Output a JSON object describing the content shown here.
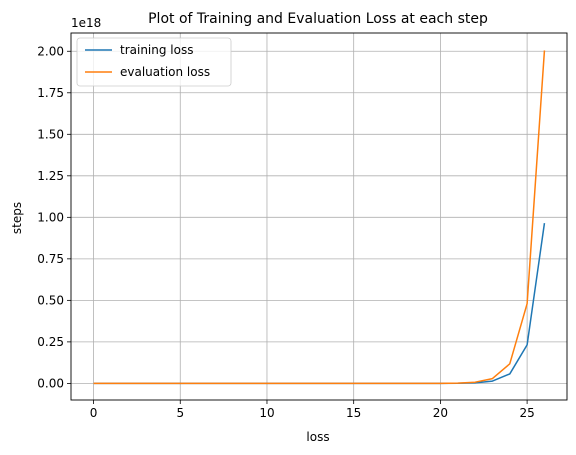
{
  "chart_data": {
    "type": "line",
    "title": "Plot of Training and Evaluation Loss at each step",
    "xlabel": "loss",
    "ylabel": "steps",
    "offset_label": "1e18",
    "xlim": [
      -1.3,
      27.3
    ],
    "ylim": [
      -0.1,
      2.11
    ],
    "xticks": [
      0,
      5,
      10,
      15,
      20,
      25
    ],
    "xtick_labels": [
      "0",
      "5",
      "10",
      "15",
      "20",
      "25"
    ],
    "yticks": [
      0,
      0.25,
      0.5,
      0.75,
      1.0,
      1.25,
      1.5,
      1.75,
      2.0
    ],
    "ytick_labels": [
      "0.00",
      "0.25",
      "0.50",
      "0.75",
      "1.00",
      "1.25",
      "1.50",
      "1.75",
      "2.00"
    ],
    "grid": true,
    "legend_position": "top-left",
    "x": [
      0,
      1,
      2,
      3,
      4,
      5,
      6,
      7,
      8,
      9,
      10,
      11,
      12,
      13,
      14,
      15,
      16,
      17,
      18,
      19,
      20,
      21,
      22,
      23,
      24,
      25,
      26
    ],
    "series": [
      {
        "name": "training loss",
        "color": "#1f77b4",
        "values": [
          0,
          0,
          0,
          0,
          0,
          0,
          0,
          0,
          0,
          0,
          0,
          0,
          0,
          0,
          0,
          0,
          0,
          0,
          0,
          0,
          0.0002,
          0.0009,
          0.0033,
          0.014,
          0.057,
          0.232,
          0.965
        ]
      },
      {
        "name": "evaluation loss",
        "color": "#ff7f0e",
        "values": [
          0,
          0,
          0,
          0,
          0,
          0,
          0,
          0,
          0,
          0,
          0,
          0,
          0,
          0,
          0,
          0,
          0,
          0,
          0,
          0,
          0.0004,
          0.0018,
          0.0072,
          0.029,
          0.118,
          0.48,
          2.005
        ]
      }
    ]
  }
}
